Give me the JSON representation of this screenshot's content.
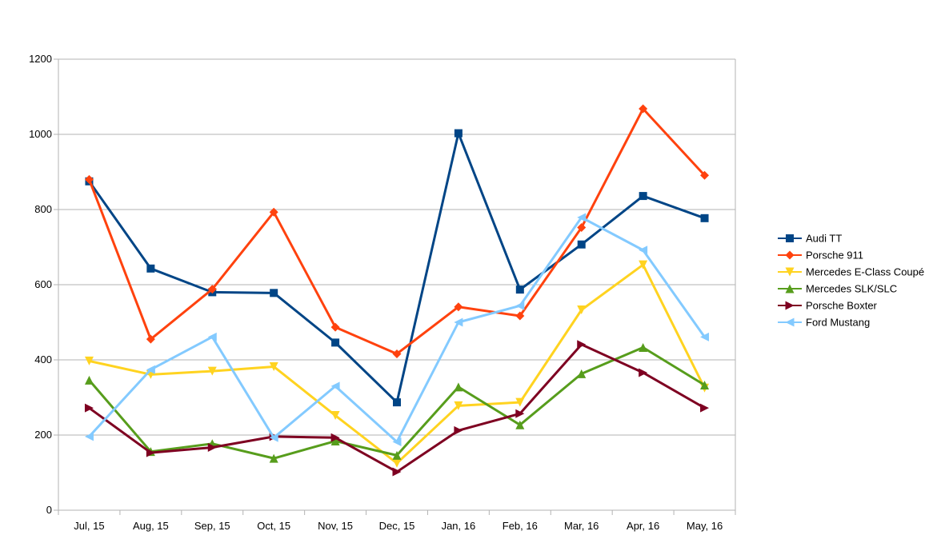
{
  "chart_data": {
    "type": "line",
    "title": "",
    "xlabel": "",
    "ylabel": "",
    "ylim": [
      0,
      1200
    ],
    "yticks": [
      0,
      200,
      400,
      600,
      800,
      1000,
      1200
    ],
    "grid": true,
    "legend_position": "right",
    "categories": [
      "Jul, 15",
      "Aug, 15",
      "Sep, 15",
      "Oct, 15",
      "Nov, 15",
      "Dec, 15",
      "Jan, 16",
      "Feb, 16",
      "Mar, 16",
      "Apr, 16",
      "May, 16"
    ],
    "series": [
      {
        "name": "Audi TT",
        "color": "#004586",
        "marker": "square",
        "values": [
          875,
          643,
          580,
          578,
          446,
          287,
          1003,
          587,
          707,
          836,
          777
        ]
      },
      {
        "name": "Porsche 911",
        "color": "#ff420e",
        "marker": "diamond",
        "values": [
          880,
          455,
          588,
          793,
          487,
          416,
          541,
          517,
          752,
          1068,
          891
        ]
      },
      {
        "name": "Mercedes E-Class Coupé",
        "color": "#ffd320",
        "marker": "triangle-down",
        "values": [
          397,
          361,
          370,
          382,
          252,
          125,
          278,
          287,
          533,
          653,
          325
        ]
      },
      {
        "name": "Mercedes SLK/SLC",
        "color": "#579d1c",
        "marker": "triangle-up",
        "values": [
          346,
          156,
          177,
          138,
          184,
          146,
          328,
          227,
          363,
          433,
          333
        ]
      },
      {
        "name": "Porsche Boxter",
        "color": "#7e0021",
        "marker": "triangle-right",
        "values": [
          272,
          153,
          167,
          196,
          193,
          102,
          212,
          257,
          441,
          366,
          272
        ]
      },
      {
        "name": "Ford Mustang",
        "color": "#83caff",
        "marker": "triangle-left",
        "values": [
          196,
          374,
          461,
          193,
          330,
          182,
          500,
          544,
          779,
          692,
          461
        ]
      }
    ]
  }
}
